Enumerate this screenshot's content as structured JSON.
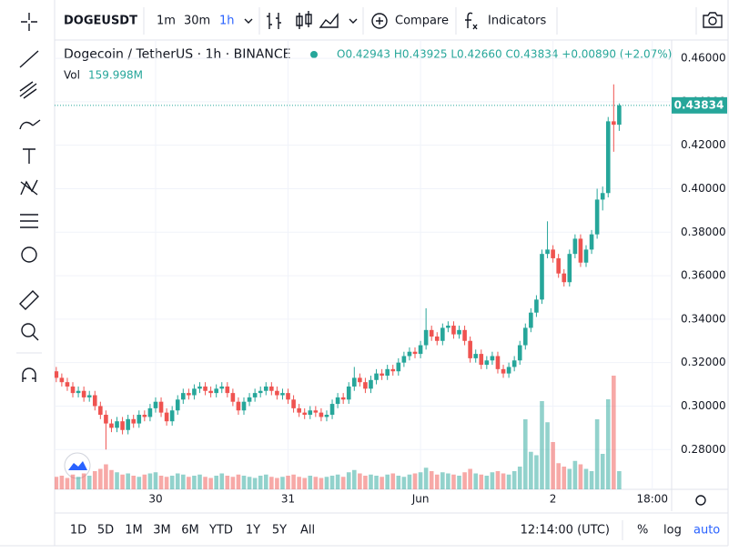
{
  "toolbar": {
    "symbol": "DOGEUSDT",
    "intervals": [
      "1m",
      "30m",
      "1h"
    ],
    "compare": "Compare",
    "indicators": "Indicators"
  },
  "bottom_bar": {
    "ranges": [
      "1D",
      "5D",
      "1M",
      "3M",
      "6M",
      "YTD",
      "1Y",
      "5Y",
      "All"
    ],
    "clock": "12:14:00 (UTC)",
    "percent": "%",
    "log": "log",
    "auto": "auto"
  },
  "chart_data": {
    "type": "candlestick",
    "title": "Dogecoin / TetherUS · 1h · BINANCE",
    "legend": "O0.42943 H0.43925 L0.42660 C0.43834 +0.00890 (+2.07%)",
    "volume_title": "Vol",
    "volume_value_label": "159.998M",
    "up_color": "#26a69a",
    "down_color": "#ef5350",
    "grid": true,
    "ylim": [
      0.2617,
      0.4684
    ],
    "yticks": [
      {
        "value": 0.28,
        "label": "0.28000"
      },
      {
        "value": 0.3,
        "label": "0.30000"
      },
      {
        "value": 0.32,
        "label": "0.32000"
      },
      {
        "value": 0.34,
        "label": "0.34000"
      },
      {
        "value": 0.36,
        "label": "0.36000"
      },
      {
        "value": 0.38,
        "label": "0.38000"
      },
      {
        "value": 0.4,
        "label": "0.40000"
      },
      {
        "value": 0.42,
        "label": "0.42000"
      },
      {
        "value": 0.44,
        "label": "0.44000"
      },
      {
        "value": 0.46,
        "label": "0.46000"
      }
    ],
    "xlim": [
      -0.3,
      111.5
    ],
    "xticks": [
      {
        "value": 18,
        "label": "30"
      },
      {
        "value": 42,
        "label": "31"
      },
      {
        "value": 66,
        "label": "Jun"
      },
      {
        "value": 90,
        "label": "2"
      },
      {
        "value": 108,
        "label": "18:00"
      }
    ],
    "last_price_label": "0.43834",
    "ohlc": [
      [
        0.316,
        0.318,
        0.311,
        0.313
      ],
      [
        0.313,
        0.315,
        0.309,
        0.311
      ],
      [
        0.311,
        0.313,
        0.307,
        0.309
      ],
      [
        0.309,
        0.311,
        0.304,
        0.306
      ],
      [
        0.306,
        0.309,
        0.304,
        0.307
      ],
      [
        0.307,
        0.309,
        0.302,
        0.304
      ],
      [
        0.304,
        0.307,
        0.302,
        0.305
      ],
      [
        0.305,
        0.307,
        0.298,
        0.3
      ],
      [
        0.3,
        0.302,
        0.294,
        0.296
      ],
      [
        0.296,
        0.298,
        0.28,
        0.292
      ],
      [
        0.292,
        0.294,
        0.288,
        0.29
      ],
      [
        0.29,
        0.295,
        0.288,
        0.293
      ],
      [
        0.293,
        0.295,
        0.287,
        0.289
      ],
      [
        0.289,
        0.296,
        0.287,
        0.294
      ],
      [
        0.294,
        0.296,
        0.29,
        0.292
      ],
      [
        0.292,
        0.298,
        0.29,
        0.296
      ],
      [
        0.296,
        0.298,
        0.293,
        0.295
      ],
      [
        0.295,
        0.301,
        0.293,
        0.299
      ],
      [
        0.299,
        0.304,
        0.297,
        0.302
      ],
      [
        0.302,
        0.304,
        0.295,
        0.297
      ],
      [
        0.297,
        0.299,
        0.291,
        0.293
      ],
      [
        0.293,
        0.3,
        0.291,
        0.298
      ],
      [
        0.298,
        0.305,
        0.296,
        0.303
      ],
      [
        0.303,
        0.308,
        0.301,
        0.306
      ],
      [
        0.306,
        0.308,
        0.303,
        0.305
      ],
      [
        0.305,
        0.31,
        0.303,
        0.308
      ],
      [
        0.308,
        0.311,
        0.306,
        0.309
      ],
      [
        0.309,
        0.311,
        0.305,
        0.307
      ],
      [
        0.307,
        0.309,
        0.304,
        0.306
      ],
      [
        0.306,
        0.31,
        0.304,
        0.308
      ],
      [
        0.308,
        0.311,
        0.306,
        0.309
      ],
      [
        0.309,
        0.311,
        0.304,
        0.306
      ],
      [
        0.306,
        0.308,
        0.3,
        0.302
      ],
      [
        0.302,
        0.304,
        0.296,
        0.298
      ],
      [
        0.298,
        0.304,
        0.296,
        0.302
      ],
      [
        0.302,
        0.306,
        0.3,
        0.304
      ],
      [
        0.304,
        0.308,
        0.302,
        0.306
      ],
      [
        0.306,
        0.309,
        0.304,
        0.307
      ],
      [
        0.307,
        0.311,
        0.305,
        0.309
      ],
      [
        0.309,
        0.311,
        0.305,
        0.307
      ],
      [
        0.307,
        0.309,
        0.303,
        0.305
      ],
      [
        0.305,
        0.308,
        0.303,
        0.306
      ],
      [
        0.306,
        0.308,
        0.301,
        0.303
      ],
      [
        0.303,
        0.305,
        0.297,
        0.299
      ],
      [
        0.299,
        0.301,
        0.295,
        0.297
      ],
      [
        0.297,
        0.299,
        0.294,
        0.296
      ],
      [
        0.296,
        0.3,
        0.294,
        0.298
      ],
      [
        0.298,
        0.3,
        0.295,
        0.297
      ],
      [
        0.297,
        0.299,
        0.293,
        0.295
      ],
      [
        0.295,
        0.298,
        0.293,
        0.296
      ],
      [
        0.296,
        0.303,
        0.294,
        0.301
      ],
      [
        0.301,
        0.306,
        0.299,
        0.304
      ],
      [
        0.304,
        0.306,
        0.301,
        0.303
      ],
      [
        0.303,
        0.311,
        0.301,
        0.309
      ],
      [
        0.309,
        0.318,
        0.307,
        0.313
      ],
      [
        0.313,
        0.315,
        0.309,
        0.311
      ],
      [
        0.311,
        0.313,
        0.306,
        0.308
      ],
      [
        0.308,
        0.314,
        0.306,
        0.312
      ],
      [
        0.312,
        0.317,
        0.31,
        0.315
      ],
      [
        0.315,
        0.317,
        0.312,
        0.314
      ],
      [
        0.314,
        0.319,
        0.312,
        0.317
      ],
      [
        0.317,
        0.319,
        0.314,
        0.316
      ],
      [
        0.316,
        0.322,
        0.314,
        0.32
      ],
      [
        0.32,
        0.325,
        0.318,
        0.323
      ],
      [
        0.323,
        0.327,
        0.321,
        0.325
      ],
      [
        0.325,
        0.327,
        0.322,
        0.324
      ],
      [
        0.324,
        0.33,
        0.322,
        0.328
      ],
      [
        0.328,
        0.345,
        0.326,
        0.335
      ],
      [
        0.335,
        0.337,
        0.33,
        0.332
      ],
      [
        0.332,
        0.334,
        0.328,
        0.33
      ],
      [
        0.33,
        0.338,
        0.328,
        0.336
      ],
      [
        0.336,
        0.339,
        0.334,
        0.337
      ],
      [
        0.337,
        0.339,
        0.331,
        0.333
      ],
      [
        0.333,
        0.337,
        0.331,
        0.335
      ],
      [
        0.335,
        0.337,
        0.328,
        0.33
      ],
      [
        0.33,
        0.332,
        0.32,
        0.322
      ],
      [
        0.322,
        0.326,
        0.32,
        0.324
      ],
      [
        0.324,
        0.326,
        0.317,
        0.319
      ],
      [
        0.319,
        0.323,
        0.317,
        0.321
      ],
      [
        0.321,
        0.325,
        0.319,
        0.323
      ],
      [
        0.323,
        0.325,
        0.315,
        0.317
      ],
      [
        0.317,
        0.319,
        0.313,
        0.315
      ],
      [
        0.315,
        0.32,
        0.313,
        0.318
      ],
      [
        0.318,
        0.323,
        0.316,
        0.321
      ],
      [
        0.321,
        0.33,
        0.319,
        0.328
      ],
      [
        0.328,
        0.338,
        0.326,
        0.336
      ],
      [
        0.336,
        0.345,
        0.334,
        0.343
      ],
      [
        0.343,
        0.351,
        0.341,
        0.349
      ],
      [
        0.349,
        0.372,
        0.347,
        0.37
      ],
      [
        0.37,
        0.385,
        0.368,
        0.372
      ],
      [
        0.372,
        0.374,
        0.366,
        0.368
      ],
      [
        0.368,
        0.37,
        0.359,
        0.361
      ],
      [
        0.361,
        0.363,
        0.355,
        0.357
      ],
      [
        0.357,
        0.372,
        0.355,
        0.37
      ],
      [
        0.37,
        0.379,
        0.368,
        0.377
      ],
      [
        0.377,
        0.379,
        0.364,
        0.366
      ],
      [
        0.366,
        0.374,
        0.364,
        0.372
      ],
      [
        0.372,
        0.381,
        0.37,
        0.379
      ],
      [
        0.379,
        0.4,
        0.377,
        0.395
      ],
      [
        0.395,
        0.401,
        0.39,
        0.398
      ],
      [
        0.398,
        0.433,
        0.396,
        0.431
      ],
      [
        0.431,
        0.448,
        0.417,
        0.42943
      ],
      [
        0.42943,
        0.43925,
        0.4266,
        0.43834
      ]
    ],
    "volume": [
      110,
      120,
      100,
      130,
      110,
      140,
      120,
      160,
      180,
      220,
      170,
      150,
      130,
      140,
      120,
      110,
      130,
      140,
      150,
      120,
      110,
      120,
      140,
      130,
      110,
      120,
      130,
      110,
      100,
      120,
      140,
      120,
      110,
      130,
      120,
      110,
      100,
      120,
      130,
      110,
      100,
      110,
      120,
      130,
      110,
      100,
      120,
      110,
      100,
      110,
      120,
      130,
      110,
      150,
      170,
      140,
      120,
      130,
      120,
      110,
      130,
      140,
      120,
      110,
      130,
      140,
      150,
      190,
      160,
      130,
      150,
      140,
      130,
      120,
      150,
      180,
      140,
      130,
      120,
      150,
      160,
      140,
      130,
      160,
      200,
      616,
      330,
      300,
      776,
      590,
      416,
      230,
      200,
      180,
      250,
      220,
      180,
      160,
      616,
      312,
      792,
      1000,
      159.998
    ]
  }
}
